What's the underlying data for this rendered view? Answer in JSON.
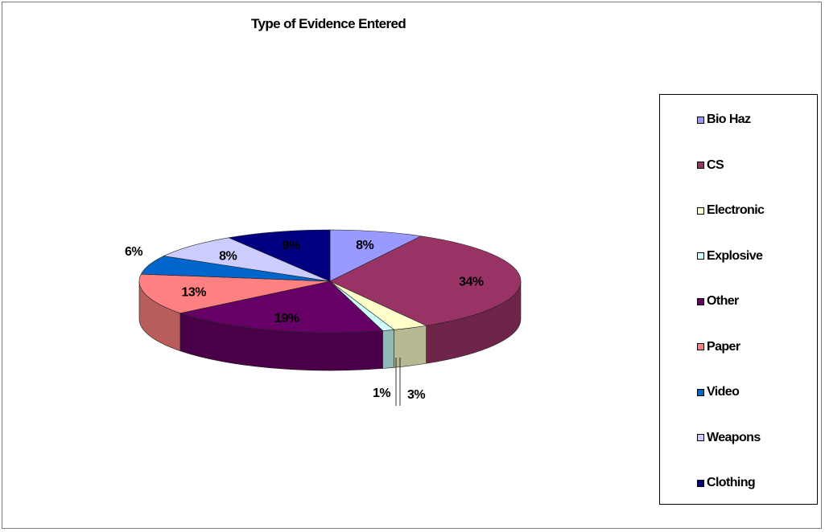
{
  "chart_data": {
    "type": "pie",
    "title": "Type of Evidence Entered",
    "categories": [
      "Bio Haz",
      "CS",
      "Electronic",
      "Explosive",
      "Other",
      "Paper",
      "Video",
      "Weapons",
      "Clothing"
    ],
    "values": [
      8,
      34,
      3,
      1,
      19,
      13,
      6,
      8,
      9
    ],
    "data_labels": [
      "8%",
      "34%",
      "3%",
      "1%",
      "19%",
      "13%",
      "6%",
      "8%",
      "9%"
    ],
    "colors": [
      "#9999ff",
      "#993366",
      "#ffffcc",
      "#ccffff",
      "#660066",
      "#ff8080",
      "#0066cc",
      "#ccccff",
      "#000080"
    ],
    "style": "3d-pie",
    "legend_position": "right"
  }
}
